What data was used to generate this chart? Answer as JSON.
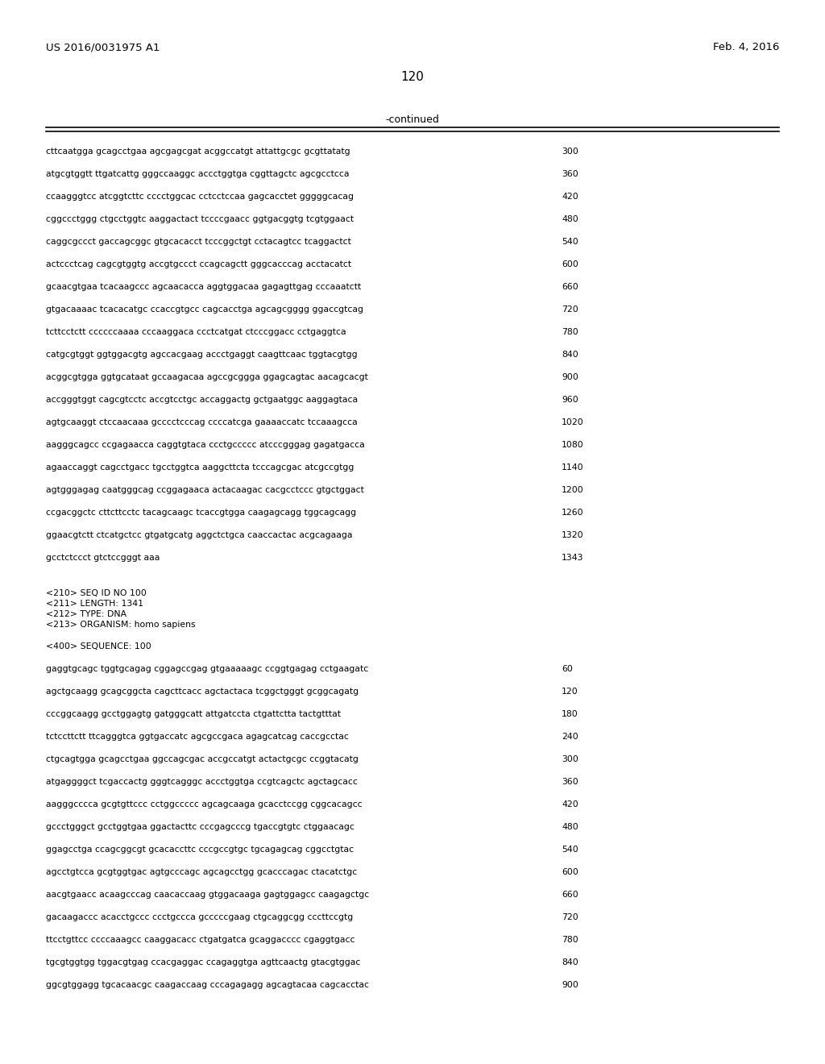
{
  "header_left": "US 2016/0031975 A1",
  "header_right": "Feb. 4, 2016",
  "page_number": "120",
  "continued_label": "-continued",
  "background_color": "#ffffff",
  "text_color": "#000000",
  "sequence_lines_top": [
    [
      "cttcaatgga gcagcctgaa agcgagcgat acggccatgt attattgcgc gcgttatatg",
      "300"
    ],
    [
      "atgcgtggtt ttgatcattg gggccaaggc accctggtga cggttagctc agcgcctcca",
      "360"
    ],
    [
      "ccaagggtcc atcggtcttc cccctggcac cctcctccaa gagcacctet gggggcacag",
      "420"
    ],
    [
      "cggccctggg ctgcctggtc aaggactact tccccgaacc ggtgacggtg tcgtggaact",
      "480"
    ],
    [
      "caggcgccct gaccagcggc gtgcacacct tcccggctgt cctacagtcc tcaggactct",
      "540"
    ],
    [
      "actccctcag cagcgtggtg accgtgccct ccagcagctt gggcacccag acctacatct",
      "600"
    ],
    [
      "gcaacgtgaa tcacaagccc agcaacacca aggtggacaa gagagttgag cccaaatctt",
      "660"
    ],
    [
      "gtgacaaaac tcacacatgc ccaccgtgcc cagcacctga agcagcgggg ggaccgtcag",
      "720"
    ],
    [
      "tcttcctctt ccccccaaaa cccaaggaca ccctcatgat ctcccggacc cctgaggtca",
      "780"
    ],
    [
      "catgcgtggt ggtggacgtg agccacgaag accctgaggt caagttcaac tggtacgtgg",
      "840"
    ],
    [
      "acggcgtgga ggtgcataat gccaagacaa agccgcggga ggagcagtac aacagcacgt",
      "900"
    ],
    [
      "accgggtggt cagcgtcctc accgtcctgc accaggactg gctgaatggc aaggagtaca",
      "960"
    ],
    [
      "agtgcaaggt ctccaacaaa gcccctcccag ccccatcga gaaaaccatc tccaaagcca",
      "1020"
    ],
    [
      "aagggcagcc ccgagaacca caggtgtaca ccctgccccc atcccgggag gagatgacca",
      "1080"
    ],
    [
      "agaaccaggt cagcctgacc tgcctggtca aaggcttcta tcccagcgac atcgccgtgg",
      "1140"
    ],
    [
      "agtgggagag caatgggcag ccggagaaca actacaagac cacgcctccc gtgctggact",
      "1200"
    ],
    [
      "ccgacggctc cttcttcctc tacagcaagc tcaccgtgga caagagcagg tggcagcagg",
      "1260"
    ],
    [
      "ggaacgtctt ctcatgctcc gtgatgcatg aggctctgca caaccactac acgcagaaga",
      "1320"
    ],
    [
      "gcctctccct gtctccgggt aaa",
      "1343"
    ]
  ],
  "metadata_lines": [
    "<210> SEQ ID NO 100",
    "<211> LENGTH: 1341",
    "<212> TYPE: DNA",
    "<213> ORGANISM: homo sapiens"
  ],
  "sequence_label": "<400> SEQUENCE: 100",
  "sequence_lines_bottom": [
    [
      "gaggtgcagc tggtgcagag cggagccgag gtgaaaaagc ccggtgagag cctgaagatc",
      "60"
    ],
    [
      "agctgcaagg gcagcggcta cagcttcacc agctactaca tcggctgggt gcggcagatg",
      "120"
    ],
    [
      "cccggcaagg gcctggagtg gatgggcatt attgatccta ctgattctta tactgtttat",
      "180"
    ],
    [
      "tctccttctt ttcagggtca ggtgaccatc agcgccgaca agagcatcag caccgcctac",
      "240"
    ],
    [
      "ctgcagtgga gcagcctgaa ggccagcgac accgccatgt actactgcgc ccggtacatg",
      "300"
    ],
    [
      "atgaggggct tcgaccactg gggtcagggc accctggtga ccgtcagctc agctagcacc",
      "360"
    ],
    [
      "aagggcccca gcgtgttccc cctggccccc agcagcaaga gcacctccgg cggcacagcc",
      "420"
    ],
    [
      "gccctgggct gcctggtgaa ggactacttc cccgagcccg tgaccgtgtc ctggaacagc",
      "480"
    ],
    [
      "ggagcctga ccagcggcgt gcacaccttc cccgccgtgc tgcagagcag cggcctgtac",
      "540"
    ],
    [
      "agcctgtcca gcgtggtgac agtgcccagc agcagcctgg gcacccagac ctacatctgc",
      "600"
    ],
    [
      "aacgtgaacc acaagcccag caacaccaag gtggacaaga gagtggagcc caagagctgc",
      "660"
    ],
    [
      "gacaagaccc acacctgccc ccctgccca gcccccgaag ctgcaggcgg cccttccgtg",
      "720"
    ],
    [
      "ttcctgttcc ccccaaagcc caaggacacc ctgatgatca gcaggacccc cgaggtgacc",
      "780"
    ],
    [
      "tgcgtggtgg tggacgtgag ccacgaggac ccagaggtga agttcaactg gtacgtggac",
      "840"
    ],
    [
      "ggcgtggagg tgcacaacgc caagaccaag cccagagagg agcagtacaa cagcacctac",
      "900"
    ]
  ]
}
